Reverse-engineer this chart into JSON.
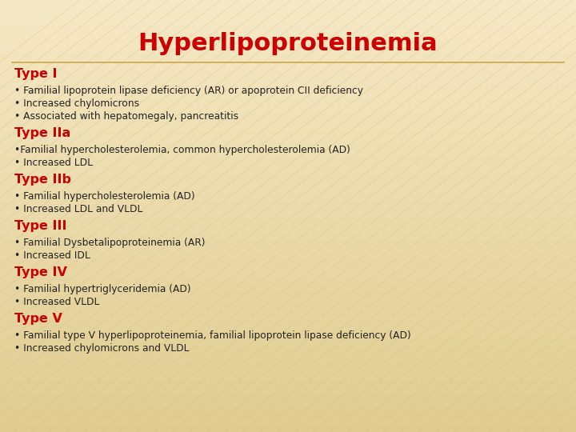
{
  "title": "Hyperlipoproteinemia",
  "title_color": "#CC0000",
  "title_fontsize": 22,
  "bg_color": "#F5E6C0",
  "stripe_color": "#E8D090",
  "separator_color": "#C8A040",
  "text_color": "#222222",
  "heading_color": "#CC0000",
  "heading_fontsize": 11.5,
  "body_fontsize": 8.8,
  "sections": [
    {
      "heading": "Type I",
      "bullets": [
        "• Familial lipoprotein lipase deficiency (AR) or apoprotein CII deficiency",
        "• Increased chylomicrons",
        "• Associated with hepatomegaly, pancreatitis"
      ]
    },
    {
      "heading": "Type IIa",
      "bullets": [
        "•Familial hypercholesterolemia, common hypercholesterolemia (AD)",
        "• Increased LDL"
      ]
    },
    {
      "heading": "Type IIb",
      "bullets": [
        "• Familial hypercholesterolemia (AD)",
        "• Increased LDL and VLDL"
      ]
    },
    {
      "heading": "Type III",
      "bullets": [
        "• Familial Dysbetalipoproteinemia (AR)",
        "• Increased IDL"
      ]
    },
    {
      "heading": "Type IV",
      "bullets": [
        "• Familial hypertriglyceridemia (AD)",
        "• Increased VLDL"
      ]
    },
    {
      "heading": "Type V",
      "bullets": [
        "• Familial type V hyperlipoproteinemia, familial lipoprotein lipase deficiency (AD)",
        "• Increased chylomicrons and VLDL"
      ]
    }
  ]
}
